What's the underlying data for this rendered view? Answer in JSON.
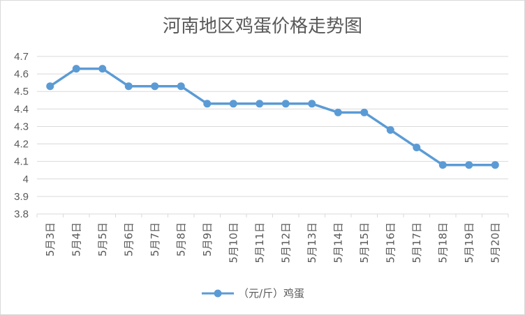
{
  "chart_data": {
    "type": "line",
    "title": "河南地区鸡蛋价格走势图",
    "categories": [
      "5月3日",
      "5月4日",
      "5月5日",
      "5月6日",
      "5月7日",
      "5月8日",
      "5月9日",
      "5月10日",
      "5月11日",
      "5月12日",
      "5月13日",
      "5月14日",
      "5月15日",
      "5月16日",
      "5月17日",
      "5月18日",
      "5月19日",
      "5月20日"
    ],
    "series": [
      {
        "name": "（元/斤）鸡蛋",
        "values": [
          4.53,
          4.63,
          4.63,
          4.53,
          4.53,
          4.53,
          4.43,
          4.43,
          4.43,
          4.43,
          4.43,
          4.38,
          4.38,
          4.28,
          4.18,
          4.08,
          4.08,
          4.08
        ]
      }
    ],
    "ylim": [
      3.8,
      4.7
    ],
    "yticks": [
      "4.7",
      "4.6",
      "4.5",
      "4.4",
      "4.3",
      "4.2",
      "4.1",
      "4",
      "3.9",
      "3.8"
    ],
    "grid": true,
    "legend_position": "bottom",
    "colors": {
      "series": "#5b9bd5",
      "grid": "#d9d9d9",
      "text": "#595959"
    }
  }
}
